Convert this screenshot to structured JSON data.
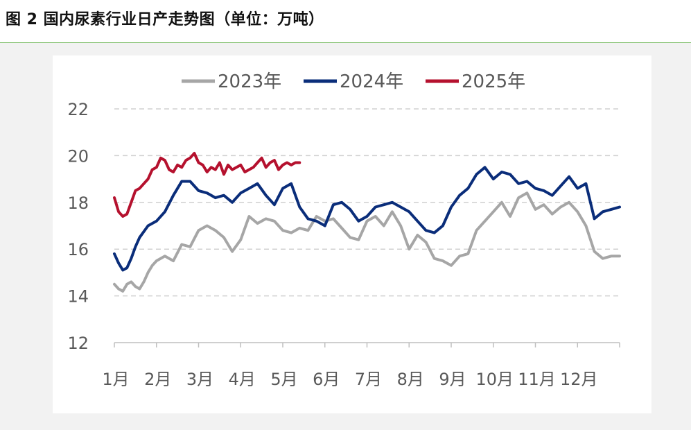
{
  "title": "图 2  国内尿素行业日产走势图（单位：万吨）",
  "chart_data": {
    "type": "line",
    "title": "",
    "xlabel": "",
    "ylabel": "",
    "ylim": [
      12,
      22
    ],
    "yticks": [
      12,
      14,
      16,
      18,
      20,
      22
    ],
    "grid": true,
    "legend_position": "top",
    "categories": [
      "1月",
      "2月",
      "3月",
      "4月",
      "5月",
      "6月",
      "7月",
      "8月",
      "9月",
      "10月",
      "11月",
      "12月"
    ],
    "series": [
      {
        "name": "2023年",
        "color": "#a6a6a6",
        "x": [
          0.0,
          0.1,
          0.2,
          0.3,
          0.4,
          0.5,
          0.6,
          0.7,
          0.8,
          0.9,
          1.0,
          1.2,
          1.4,
          1.6,
          1.8,
          2.0,
          2.2,
          2.4,
          2.6,
          2.8,
          3.0,
          3.2,
          3.4,
          3.6,
          3.8,
          4.0,
          4.2,
          4.4,
          4.6,
          4.8,
          5.0,
          5.2,
          5.4,
          5.6,
          5.8,
          6.0,
          6.2,
          6.4,
          6.6,
          6.8,
          7.0,
          7.2,
          7.4,
          7.6,
          7.8,
          8.0,
          8.2,
          8.4,
          8.6,
          8.8,
          9.0,
          9.2,
          9.4,
          9.6,
          9.8,
          10.0,
          10.2,
          10.4,
          10.6,
          10.8,
          11.0,
          11.2,
          11.4,
          11.6,
          11.8,
          12.0
        ],
        "values": [
          14.5,
          14.3,
          14.2,
          14.5,
          14.6,
          14.4,
          14.3,
          14.6,
          15.0,
          15.3,
          15.5,
          15.7,
          15.5,
          16.2,
          16.1,
          16.8,
          17.0,
          16.8,
          16.5,
          15.9,
          16.4,
          17.4,
          17.1,
          17.3,
          17.2,
          16.8,
          16.7,
          16.9,
          16.8,
          17.4,
          17.2,
          17.3,
          16.9,
          16.5,
          16.4,
          17.2,
          17.4,
          17.0,
          17.6,
          17.0,
          16.0,
          16.6,
          16.3,
          15.6,
          15.5,
          15.3,
          15.7,
          15.8,
          16.8,
          17.2,
          17.6,
          18.0,
          17.4,
          18.2,
          18.4,
          17.7,
          17.9,
          17.5,
          17.8,
          18.0,
          17.6,
          17.0,
          15.9,
          15.6,
          15.7,
          15.7
        ]
      },
      {
        "name": "2024年",
        "color": "#0a2d7a",
        "x": [
          0.0,
          0.1,
          0.2,
          0.3,
          0.4,
          0.5,
          0.6,
          0.8,
          1.0,
          1.2,
          1.4,
          1.6,
          1.8,
          2.0,
          2.2,
          2.4,
          2.6,
          2.8,
          3.0,
          3.2,
          3.4,
          3.6,
          3.8,
          4.0,
          4.2,
          4.4,
          4.6,
          4.8,
          5.0,
          5.2,
          5.4,
          5.6,
          5.8,
          6.0,
          6.2,
          6.4,
          6.6,
          6.8,
          7.0,
          7.2,
          7.4,
          7.6,
          7.8,
          8.0,
          8.2,
          8.4,
          8.6,
          8.8,
          9.0,
          9.2,
          9.4,
          9.6,
          9.8,
          10.0,
          10.2,
          10.4,
          10.6,
          10.8,
          11.0,
          11.2,
          11.4,
          11.6,
          11.8,
          12.0
        ],
        "values": [
          15.8,
          15.4,
          15.1,
          15.2,
          15.6,
          16.1,
          16.5,
          17.0,
          17.2,
          17.6,
          18.3,
          18.9,
          18.9,
          18.5,
          18.4,
          18.2,
          18.3,
          18.0,
          18.4,
          18.6,
          18.8,
          18.3,
          17.9,
          18.6,
          18.8,
          17.8,
          17.3,
          17.2,
          17.0,
          17.9,
          18.0,
          17.7,
          17.2,
          17.4,
          17.8,
          17.9,
          18.0,
          17.8,
          17.6,
          17.2,
          16.8,
          16.7,
          17.0,
          17.8,
          18.3,
          18.6,
          19.2,
          19.5,
          19.0,
          19.3,
          19.2,
          18.8,
          18.9,
          18.6,
          18.5,
          18.3,
          18.7,
          19.1,
          18.6,
          18.8,
          17.3,
          17.6,
          17.7,
          17.8
        ]
      },
      {
        "name": "2025年",
        "color": "#b5112e",
        "x": [
          0.0,
          0.1,
          0.2,
          0.3,
          0.4,
          0.5,
          0.6,
          0.7,
          0.8,
          0.9,
          1.0,
          1.1,
          1.2,
          1.3,
          1.4,
          1.5,
          1.6,
          1.7,
          1.8,
          1.9,
          2.0,
          2.1,
          2.2,
          2.3,
          2.4,
          2.5,
          2.6,
          2.7,
          2.8,
          2.9,
          3.0,
          3.1,
          3.2,
          3.3,
          3.4,
          3.5,
          3.6,
          3.7,
          3.8,
          3.9,
          4.0,
          4.1,
          4.2,
          4.3,
          4.4
        ],
        "values": [
          18.2,
          17.6,
          17.4,
          17.5,
          18.0,
          18.5,
          18.6,
          18.8,
          19.0,
          19.4,
          19.5,
          19.9,
          19.8,
          19.4,
          19.3,
          19.6,
          19.5,
          19.8,
          19.9,
          20.1,
          19.7,
          19.6,
          19.3,
          19.5,
          19.4,
          19.7,
          19.2,
          19.6,
          19.4,
          19.5,
          19.6,
          19.3,
          19.4,
          19.5,
          19.7,
          19.9,
          19.5,
          19.7,
          19.8,
          19.4,
          19.6,
          19.7,
          19.6,
          19.7,
          19.7
        ]
      }
    ]
  }
}
